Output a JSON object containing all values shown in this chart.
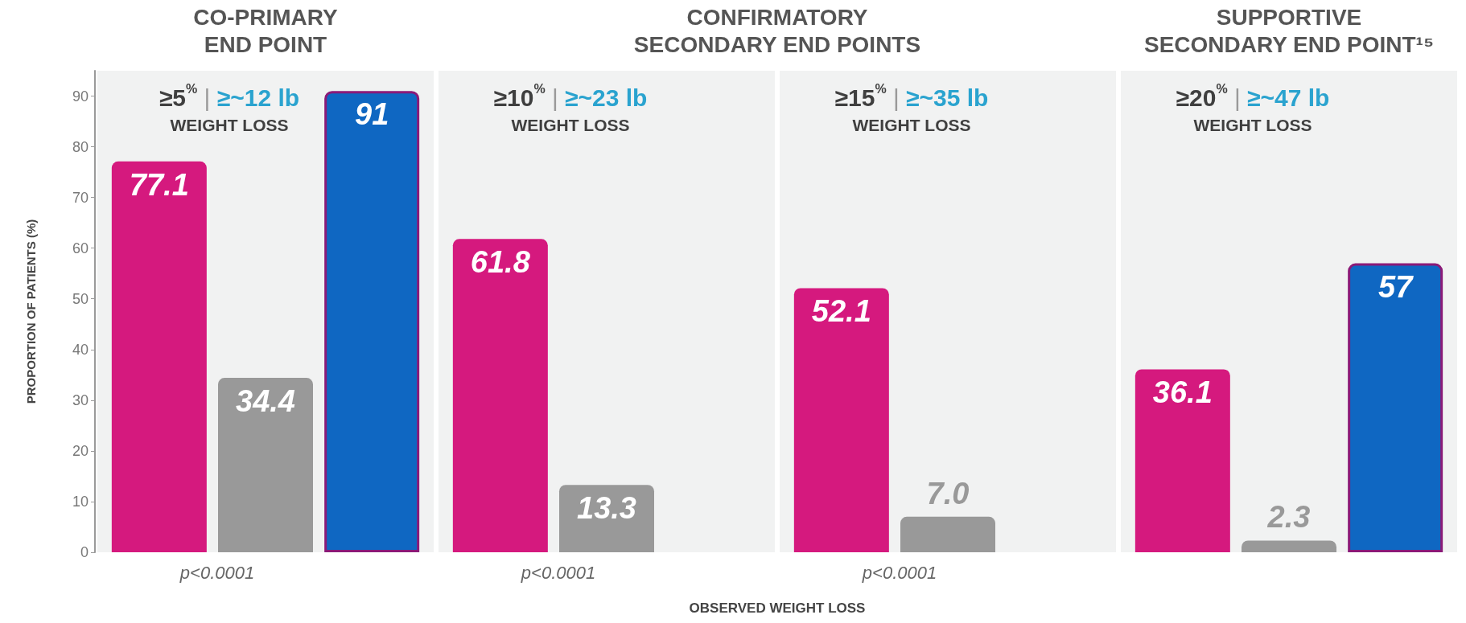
{
  "chart_data": {
    "type": "bar",
    "categories": [
      "≥5$^{%}$ | ≥~12 lb\nWEIGHT LOSS",
      "≥10$^{%}$ | ≥~23 lb\nWEIGHT LOSS",
      "≥15$^{%}$ | ≥~35 lb\nWEIGHT LOSS",
      "≥20$^{%}$ | ≥~47 lb\nWEIGHT LOSS"
    ],
    "series": [
      {
        "color": "#d5197e",
        "values": [
          77.1,
          61.8,
          52.1,
          36.1
        ],
        "value_labels": [
          "77.1",
          "61.8",
          "52.1",
          "36.1"
        ]
      },
      {
        "color": "#999999",
        "values": [
          34.4,
          13.3,
          7.0,
          2.3
        ],
        "value_labels": [
          "34.4",
          "13.3",
          "7.0",
          "2.3"
        ]
      },
      {
        "color": "#0f67c2",
        "values": [
          91,
          null,
          null,
          57
        ],
        "value_labels": [
          "91",
          null,
          null,
          "57"
        ]
      }
    ],
    "ylabel": "PROPORTION OF PATIENTS (%)",
    "xlabel": "OBSERVED WEIGHT LOSS",
    "ylim": [
      0,
      95
    ],
    "yticks": [
      0,
      10,
      20,
      30,
      40,
      50,
      60,
      70,
      80,
      90
    ],
    "grid": false,
    "annotations": [
      "CO-PRIMARY\nEND POINT",
      "CONFIRMATORY\nSECONDARY END POINTS",
      "SUPPORTIVE\nSECONDARY END POINT¹⁵",
      "p<0.0001",
      "p<0.0001",
      "p<0.0001"
    ]
  }
}
